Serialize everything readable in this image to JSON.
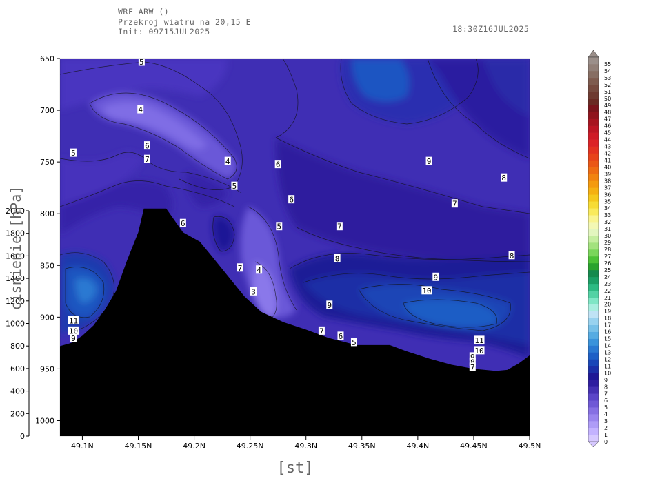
{
  "header": {
    "line1": "WRF ARW ()",
    "line2": "Przekroj wiatru na 20,15 E",
    "line3": "Init: 09Z15JUL2025",
    "valid_time": "18:30Z16JUL2025"
  },
  "chart_data": {
    "type": "heatmap",
    "subtype": "contour-cross-section",
    "xlabel": "[st]",
    "ylabel_left": "hPa",
    "ylabel_inner": "cisnienie [hPa]",
    "x_ticks": [
      "49.1N",
      "49.15N",
      "49.2N",
      "49.25N",
      "49.3N",
      "49.35N",
      "49.4N",
      "49.45N",
      "49.5N"
    ],
    "x_tick_values": [
      49.1,
      49.15,
      49.2,
      49.25,
      49.3,
      49.35,
      49.4,
      49.45,
      49.5
    ],
    "xlim": [
      49.08,
      49.5
    ],
    "y_ticks": [
      "650",
      "700",
      "750",
      "800",
      "850",
      "900",
      "950",
      "1000"
    ],
    "y_tick_values": [
      650,
      700,
      750,
      800,
      850,
      900,
      950,
      1000
    ],
    "ylim": [
      650,
      1015
    ],
    "y2_ticks": [
      "2000",
      "1800",
      "1600",
      "1400",
      "1200",
      "1000",
      "800",
      "600",
      "400",
      "200",
      "0"
    ],
    "y2_tick_values": [
      2000,
      1800,
      1600,
      1400,
      1200,
      1000,
      800,
      600,
      400,
      200,
      0
    ],
    "contour_labels": [
      {
        "text": "5",
        "lat": 49.153,
        "p": 653
      },
      {
        "text": "4",
        "lat": 49.152,
        "p": 699
      },
      {
        "text": "5",
        "lat": 49.092,
        "p": 741
      },
      {
        "text": "6",
        "lat": 49.158,
        "p": 734
      },
      {
        "text": "7",
        "lat": 49.158,
        "p": 747
      },
      {
        "text": "4",
        "lat": 49.23,
        "p": 749
      },
      {
        "text": "6",
        "lat": 49.275,
        "p": 752
      },
      {
        "text": "5",
        "lat": 49.236,
        "p": 773
      },
      {
        "text": "6",
        "lat": 49.287,
        "p": 786
      },
      {
        "text": "9",
        "lat": 49.41,
        "p": 749
      },
      {
        "text": "8",
        "lat": 49.477,
        "p": 765
      },
      {
        "text": "7",
        "lat": 49.433,
        "p": 790
      },
      {
        "text": "6",
        "lat": 49.19,
        "p": 809
      },
      {
        "text": "5",
        "lat": 49.276,
        "p": 812
      },
      {
        "text": "7",
        "lat": 49.33,
        "p": 812
      },
      {
        "text": "8",
        "lat": 49.328,
        "p": 843
      },
      {
        "text": "8",
        "lat": 49.484,
        "p": 840
      },
      {
        "text": "7",
        "lat": 49.241,
        "p": 852
      },
      {
        "text": "4",
        "lat": 49.258,
        "p": 854
      },
      {
        "text": "9",
        "lat": 49.416,
        "p": 861
      },
      {
        "text": "3",
        "lat": 49.253,
        "p": 875
      },
      {
        "text": "10",
        "lat": 49.408,
        "p": 874
      },
      {
        "text": "9",
        "lat": 49.321,
        "p": 888
      },
      {
        "text": "11",
        "lat": 49.092,
        "p": 903
      },
      {
        "text": "10",
        "lat": 49.092,
        "p": 913
      },
      {
        "text": "9",
        "lat": 49.092,
        "p": 920
      },
      {
        "text": "7",
        "lat": 49.314,
        "p": 913
      },
      {
        "text": "6",
        "lat": 49.331,
        "p": 918
      },
      {
        "text": "5",
        "lat": 49.343,
        "p": 924
      },
      {
        "text": "11",
        "lat": 49.455,
        "p": 922
      },
      {
        "text": "10",
        "lat": 49.455,
        "p": 932
      },
      {
        "text": "9",
        "lat": 49.449,
        "p": 938
      },
      {
        "text": "8",
        "lat": 49.449,
        "p": 943
      },
      {
        "text": "7",
        "lat": 49.449,
        "p": 948
      }
    ],
    "terrain": [
      {
        "lat": 49.08,
        "p": 928
      },
      {
        "lat": 49.09,
        "p": 925
      },
      {
        "lat": 49.1,
        "p": 918
      },
      {
        "lat": 49.11,
        "p": 908
      },
      {
        "lat": 49.12,
        "p": 893
      },
      {
        "lat": 49.13,
        "p": 875
      },
      {
        "lat": 49.14,
        "p": 845
      },
      {
        "lat": 49.15,
        "p": 818
      },
      {
        "lat": 49.155,
        "p": 795
      },
      {
        "lat": 49.175,
        "p": 795
      },
      {
        "lat": 49.19,
        "p": 818
      },
      {
        "lat": 49.205,
        "p": 827
      },
      {
        "lat": 49.215,
        "p": 840
      },
      {
        "lat": 49.23,
        "p": 860
      },
      {
        "lat": 49.245,
        "p": 880
      },
      {
        "lat": 49.26,
        "p": 895
      },
      {
        "lat": 49.28,
        "p": 905
      },
      {
        "lat": 49.3,
        "p": 912
      },
      {
        "lat": 49.32,
        "p": 920
      },
      {
        "lat": 49.345,
        "p": 927
      },
      {
        "lat": 49.36,
        "p": 927
      },
      {
        "lat": 49.375,
        "p": 927
      },
      {
        "lat": 49.39,
        "p": 933
      },
      {
        "lat": 49.41,
        "p": 940
      },
      {
        "lat": 49.43,
        "p": 946
      },
      {
        "lat": 49.45,
        "p": 950
      },
      {
        "lat": 49.47,
        "p": 952
      },
      {
        "lat": 49.48,
        "p": 951
      },
      {
        "lat": 49.49,
        "p": 945
      },
      {
        "lat": 49.5,
        "p": 937
      }
    ],
    "colorbar": {
      "values": [
        0,
        1,
        2,
        3,
        4,
        5,
        6,
        7,
        8,
        9,
        10,
        11,
        12,
        13,
        14,
        15,
        16,
        17,
        18,
        19,
        20,
        21,
        22,
        23,
        24,
        25,
        26,
        27,
        28,
        29,
        30,
        31,
        32,
        33,
        34,
        35,
        36,
        37,
        38,
        39,
        40,
        41,
        42,
        43,
        44,
        45,
        46,
        47,
        48,
        49,
        50,
        51,
        52,
        53,
        54,
        55
      ],
      "colors": [
        "#d6c8ff",
        "#c3b2ff",
        "#ae9cf7",
        "#9a85ee",
        "#8670e3",
        "#6f59d6",
        "#5b45c8",
        "#4530b3",
        "#2f1da0",
        "#1e1896",
        "#1b2fa8",
        "#1946b8",
        "#1d5fc6",
        "#2a79d2",
        "#3a93db",
        "#55abe2",
        "#76c0e8",
        "#98d2ef",
        "#bfe3f5",
        "#a8eedf",
        "#7fe6c5",
        "#52d2a4",
        "#2dba83",
        "#1b9f66",
        "#158a4e",
        "#29a32d",
        "#4cc236",
        "#7ad65a",
        "#a3e27e",
        "#c5ee9f",
        "#e3f6bf",
        "#f3f8b4",
        "#f9f48f",
        "#f9ea5b",
        "#f7dc35",
        "#f5c81c",
        "#f5b011",
        "#f49a0e",
        "#f1830f",
        "#ee6c12",
        "#ea5716",
        "#e7431a",
        "#e33220",
        "#dc2326",
        "#cf1a27",
        "#bd1524",
        "#a71420",
        "#90141d",
        "#7a141b",
        "#6a2a23",
        "#6e3a30",
        "#764a3e",
        "#7e5b4e",
        "#876e63",
        "#917f77",
        "#9b8f8a"
      ]
    }
  }
}
